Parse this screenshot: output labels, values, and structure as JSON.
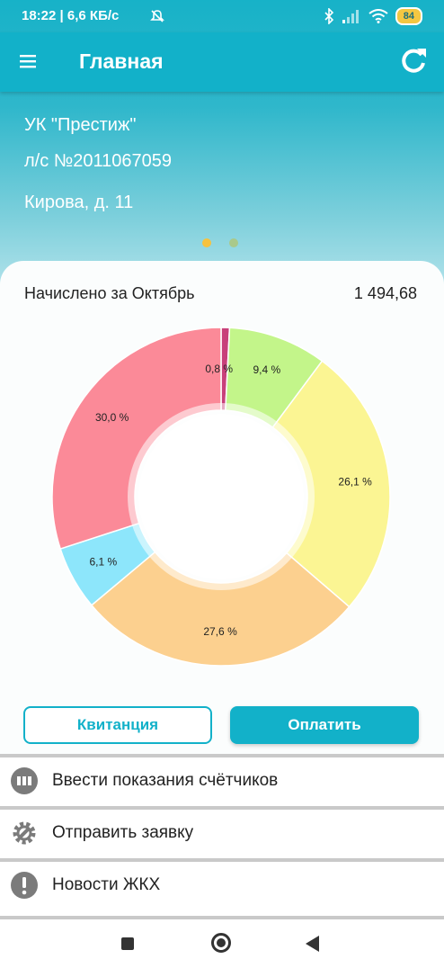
{
  "status_bar": {
    "time": "18:22 | 6,6 КБ/с",
    "battery": "84",
    "icons": [
      "mute-bell-icon",
      "bluetooth-icon",
      "signal-icon",
      "wifi-icon",
      "battery-icon"
    ]
  },
  "app_bar": {
    "title": "Главная",
    "menu_icon": "hamburger-menu-icon",
    "refresh_icon": "refresh-icon"
  },
  "account": {
    "company": "УК \"Престиж\"",
    "number": "л/с №2011067059",
    "address": "Кирова, д. 11",
    "page_indicator": {
      "count": 2,
      "active_index": 0
    }
  },
  "charges": {
    "label": "Начислено за Октябрь",
    "amount": "1 494,68"
  },
  "chart_data": {
    "type": "pie",
    "style": "donut",
    "values": [
      0.8,
      9.4,
      26.1,
      27.6,
      6.1,
      30.0
    ],
    "labels": [
      "0,8 %",
      "9,4 %",
      "26,1 %",
      "27,6 %",
      "6,1 %",
      "30,0 %"
    ],
    "colors": [
      "#c8407a",
      "#c3f58a",
      "#fbf593",
      "#fcd08f",
      "#8de6fb",
      "#fb8a98"
    ]
  },
  "actions": {
    "receipt": "Квитанция",
    "pay": "Оплатить"
  },
  "menu": [
    {
      "label": "Ввести показания счётчиков",
      "icon": "meter-icon"
    },
    {
      "label": "Отправить заявку",
      "icon": "gear-wrench-icon"
    },
    {
      "label": "Новости ЖКХ",
      "icon": "alert-icon"
    }
  ],
  "nav": {
    "icons": [
      "recent-apps-icon",
      "home-icon",
      "back-icon"
    ]
  }
}
